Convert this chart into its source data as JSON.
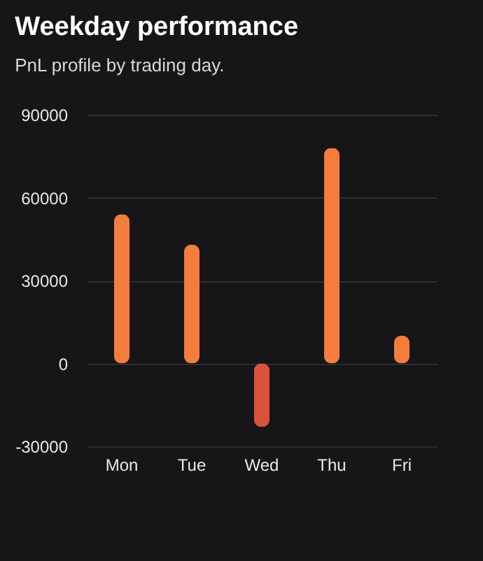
{
  "chart_data": {
    "type": "bar",
    "title": "Weekday performance",
    "subtitle": "PnL profile by trading day.",
    "categories": [
      "Mon",
      "Tue",
      "Wed",
      "Thu",
      "Fri"
    ],
    "values": [
      54000,
      43000,
      -23000,
      78000,
      10000
    ],
    "colors": [
      "#f47c3c",
      "#f47c3c",
      "#d9523c",
      "#f47c3c",
      "#f47c3c"
    ],
    "ylim": [
      -30000,
      90000
    ],
    "yticks": [
      -30000,
      0,
      30000,
      60000,
      90000
    ],
    "grid": "y"
  }
}
